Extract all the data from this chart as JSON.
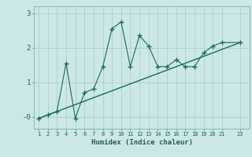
{
  "title": "",
  "xlabel": "Humidex (Indice chaleur)",
  "ylabel": "",
  "background_color": "#cce8e6",
  "grid_color": "#aacfcd",
  "line_color": "#1a6b5a",
  "x_data": [
    1,
    2,
    3,
    4,
    5,
    6,
    7,
    8,
    9,
    10,
    11,
    12,
    13,
    14,
    15,
    16,
    17,
    18,
    19,
    20,
    21,
    23
  ],
  "y_data": [
    -0.05,
    0.05,
    0.15,
    1.55,
    -0.05,
    0.7,
    0.8,
    1.45,
    2.55,
    2.75,
    1.45,
    2.35,
    2.05,
    1.45,
    1.45,
    1.65,
    1.45,
    1.45,
    1.85,
    2.05,
    2.15,
    2.15
  ],
  "trend_x": [
    1,
    23
  ],
  "trend_y": [
    -0.05,
    2.15
  ],
  "xlim": [
    0.5,
    24.0
  ],
  "ylim": [
    -0.35,
    3.2
  ],
  "yticks": [
    0,
    1,
    2,
    3
  ],
  "ytick_labels": [
    "-0",
    "1",
    "2",
    "3"
  ],
  "xticks": [
    1,
    2,
    3,
    4,
    5,
    6,
    7,
    8,
    9,
    10,
    11,
    12,
    13,
    14,
    15,
    16,
    17,
    18,
    19,
    20,
    21,
    23
  ],
  "xtick_labels": [
    "1",
    "2",
    "3",
    "4",
    "5",
    "6",
    "7",
    "8",
    "9",
    "10",
    "11",
    "12",
    "13",
    "14",
    "15",
    "16",
    "17",
    "18",
    "19",
    "20",
    "21",
    "23"
  ]
}
